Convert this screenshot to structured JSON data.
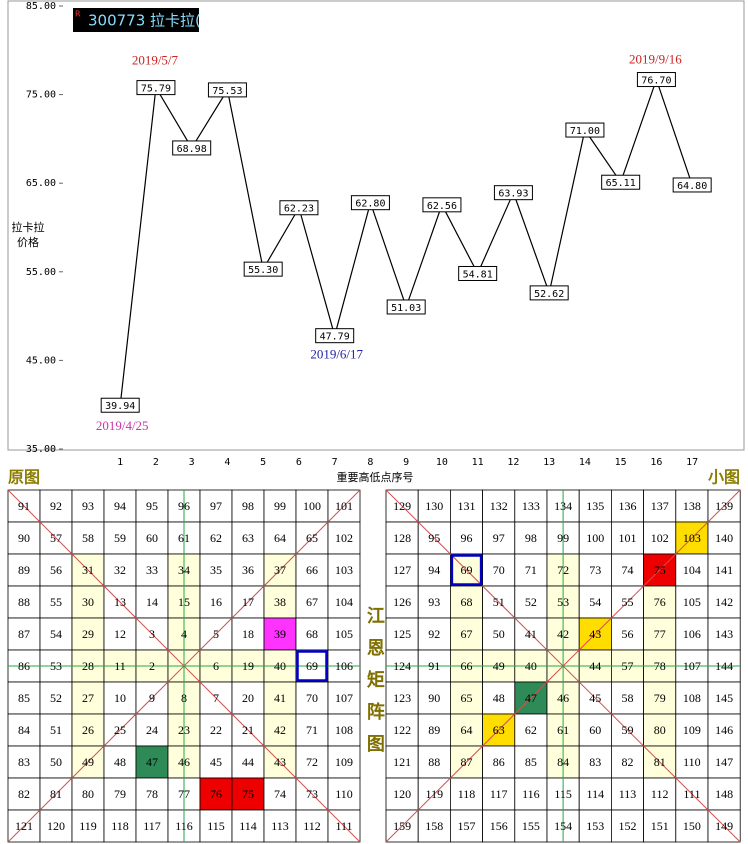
{
  "chart_data": {
    "type": "line",
    "legend": "300773 拉卡拉(",
    "legend_mark": "R",
    "x_label": "重要高低点序号",
    "y_label": [
      "拉卡拉",
      "价格"
    ],
    "x": [
      1,
      2,
      3,
      4,
      5,
      6,
      7,
      8,
      9,
      10,
      11,
      12,
      13,
      14,
      15,
      16,
      17
    ],
    "values": [
      39.94,
      75.79,
      68.98,
      75.53,
      55.3,
      62.23,
      47.79,
      62.8,
      51.03,
      62.56,
      54.81,
      63.93,
      52.62,
      71.0,
      65.11,
      76.7,
      64.8
    ],
    "value_labels": [
      "39.94",
      "75.79",
      "68.98",
      "75.53",
      "55.30",
      "62.23",
      "47.79",
      "62.80",
      "51.03",
      "62.56",
      "54.81",
      "63.93",
      "52.62",
      "71.00",
      "65.11",
      "76.70",
      "64.80"
    ],
    "color": "#000000",
    "xlim": [
      -0.6,
      18.45
    ],
    "xticks": [
      1,
      2,
      3,
      4,
      5,
      6,
      7,
      8,
      9,
      10,
      11,
      12,
      13,
      14,
      15,
      16,
      17
    ],
    "ylim": [
      35,
      85
    ],
    "yticks": [
      {
        "value": 35,
        "label": "35.00"
      },
      {
        "value": 45,
        "label": "45.00"
      },
      {
        "value": 55,
        "label": "55.00"
      },
      {
        "value": 65,
        "label": "65.00"
      },
      {
        "value": 75,
        "label": "75.00"
      },
      {
        "value": 85,
        "label": "85.00"
      }
    ],
    "annotations": [
      {
        "text": "2019/4/25",
        "color": "#cc33aa"
      },
      {
        "text": "2019/5/7",
        "color": "#cc2222"
      },
      {
        "text": "2019/6/17",
        "color": "#2222aa"
      },
      {
        "text": "2019/9/16",
        "color": "#cc2222"
      }
    ]
  },
  "side_title": "江恩矩阵图",
  "left_grid": {
    "title": "原图",
    "rows": [
      [
        91,
        92,
        93,
        94,
        95,
        96,
        97,
        98,
        99,
        100,
        101
      ],
      [
        90,
        57,
        58,
        59,
        60,
        61,
        62,
        63,
        64,
        65,
        102
      ],
      [
        89,
        56,
        31,
        32,
        33,
        34,
        35,
        36,
        37,
        66,
        103
      ],
      [
        88,
        55,
        30,
        13,
        14,
        15,
        16,
        17,
        38,
        67,
        104
      ],
      [
        87,
        54,
        29,
        12,
        3,
        4,
        5,
        18,
        39,
        68,
        105
      ],
      [
        86,
        53,
        28,
        11,
        2,
        null,
        6,
        19,
        40,
        69,
        106
      ],
      [
        85,
        52,
        27,
        10,
        9,
        8,
        7,
        20,
        41,
        70,
        107
      ],
      [
        84,
        51,
        26,
        25,
        24,
        23,
        22,
        21,
        42,
        71,
        108
      ],
      [
        83,
        50,
        49,
        48,
        47,
        46,
        45,
        44,
        43,
        72,
        109
      ],
      [
        82,
        81,
        80,
        79,
        78,
        77,
        76,
        75,
        74,
        73,
        110
      ],
      [
        121,
        120,
        119,
        118,
        117,
        116,
        115,
        114,
        113,
        112,
        111
      ]
    ],
    "highlights": [
      {
        "cell": 39,
        "fill": "#ff33ff"
      },
      {
        "cell": 69,
        "border": "#0000cc"
      },
      {
        "cell": 47,
        "fill": "#2e8b57"
      },
      {
        "cell": 76,
        "fill": "#ee0000"
      },
      {
        "cell": 75,
        "fill": "#ee0000"
      }
    ]
  },
  "right_grid": {
    "title": "小图",
    "rows": [
      [
        129,
        130,
        131,
        132,
        133,
        134,
        135,
        136,
        137,
        138,
        139
      ],
      [
        128,
        95,
        96,
        97,
        98,
        99,
        100,
        101,
        102,
        103,
        140
      ],
      [
        127,
        94,
        69,
        70,
        71,
        72,
        73,
        74,
        75,
        104,
        141
      ],
      [
        126,
        93,
        68,
        51,
        52,
        53,
        54,
        55,
        76,
        105,
        142
      ],
      [
        125,
        92,
        67,
        50,
        41,
        42,
        43,
        56,
        77,
        106,
        143
      ],
      [
        124,
        91,
        66,
        49,
        40,
        null,
        44,
        57,
        78,
        107,
        144
      ],
      [
        123,
        90,
        65,
        48,
        47,
        46,
        45,
        58,
        79,
        108,
        145
      ],
      [
        122,
        89,
        64,
        63,
        62,
        61,
        60,
        59,
        80,
        109,
        146
      ],
      [
        121,
        88,
        87,
        86,
        85,
        84,
        83,
        82,
        81,
        110,
        147
      ],
      [
        120,
        119,
        118,
        117,
        116,
        115,
        114,
        113,
        112,
        111,
        148
      ],
      [
        159,
        158,
        157,
        156,
        155,
        154,
        153,
        152,
        151,
        150,
        149
      ]
    ],
    "highlights": [
      {
        "cell": 103,
        "fill": "#ffdd00"
      },
      {
        "cell": 69,
        "border": "#0000cc"
      },
      {
        "cell": 75,
        "fill": "#ee0000"
      },
      {
        "cell": 43,
        "fill": "#ffdd00"
      },
      {
        "cell": 47,
        "fill": "#2e8b57"
      },
      {
        "cell": 63,
        "fill": "#ffdd00"
      }
    ]
  }
}
